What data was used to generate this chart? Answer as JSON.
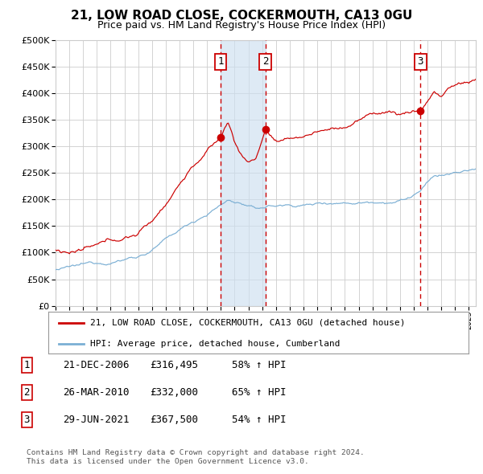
{
  "title": "21, LOW ROAD CLOSE, COCKERMOUTH, CA13 0GU",
  "subtitle": "Price paid vs. HM Land Registry's House Price Index (HPI)",
  "legend_line1": "21, LOW ROAD CLOSE, COCKERMOUTH, CA13 0GU (detached house)",
  "legend_line2": "HPI: Average price, detached house, Cumberland",
  "footer1": "Contains HM Land Registry data © Crown copyright and database right 2024.",
  "footer2": "This data is licensed under the Open Government Licence v3.0.",
  "red_color": "#cc0000",
  "blue_color": "#7bafd4",
  "bg_color": "#ffffff",
  "grid_color": "#cccccc",
  "sale_markers": [
    {
      "label": "1",
      "date_num": 2006.97,
      "price": 316495
    },
    {
      "label": "2",
      "date_num": 2010.23,
      "price": 332000
    },
    {
      "label": "3",
      "date_num": 2021.49,
      "price": 367500
    }
  ],
  "span_start": 2006.97,
  "span_end": 2010.23,
  "table_rows": [
    {
      "num": "1",
      "date": "21-DEC-2006",
      "price": "£316,495",
      "change": "58% ↑ HPI"
    },
    {
      "num": "2",
      "date": "26-MAR-2010",
      "price": "£332,000",
      "change": "65% ↑ HPI"
    },
    {
      "num": "3",
      "date": "29-JUN-2021",
      "price": "£367,500",
      "change": "54% ↑ HPI"
    }
  ],
  "xmin": 1995.0,
  "xmax": 2025.5,
  "ymin": 0,
  "ymax": 500000
}
